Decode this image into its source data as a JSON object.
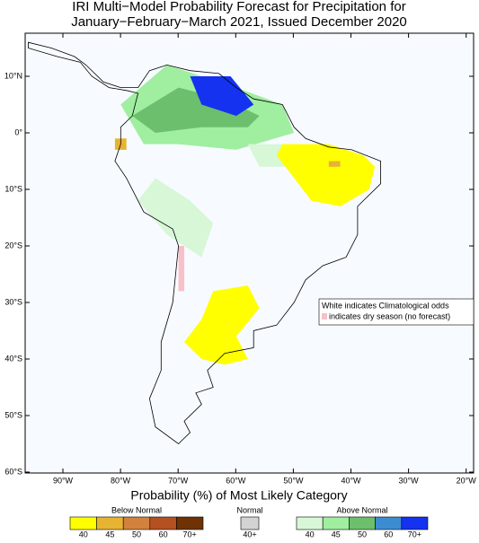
{
  "title": [
    "IRI Multi−Model Probability Forecast for Precipitation for",
    "January−February−March 2021, Issued December 2020"
  ],
  "map": {
    "lat_ticks": [
      "10°N",
      "0°",
      "10°S",
      "20°S",
      "30°S",
      "40°S",
      "50°S",
      "60°S"
    ],
    "lon_ticks": [
      "90°W",
      "80°W",
      "70°W",
      "60°W",
      "50°W",
      "40°W",
      "30°W",
      "20°W"
    ]
  },
  "note": {
    "line1": "White indicates Climatological odds",
    "line2": "indicates dry season (no forecast)"
  },
  "legend": {
    "title": "Probability (%) of Most Likely Category",
    "groups": [
      {
        "name": "Below Normal",
        "bins": [
          {
            "label": "40",
            "color": "#ffff00"
          },
          {
            "label": "45",
            "color": "#e6b432"
          },
          {
            "label": "50",
            "color": "#d2823c"
          },
          {
            "label": "60",
            "color": "#b45021"
          },
          {
            "label": "70+",
            "color": "#6e3205"
          }
        ]
      },
      {
        "name": "Normal",
        "bins": [
          {
            "label": "40+",
            "color": "#d3d3d3"
          }
        ]
      },
      {
        "name": "Above Normal",
        "bins": [
          {
            "label": "40",
            "color": "#d7f7d7"
          },
          {
            "label": "45",
            "color": "#a0eea0"
          },
          {
            "label": "50",
            "color": "#6cbf6c"
          },
          {
            "label": "60",
            "color": "#3c8cd2"
          },
          {
            "label": "70+",
            "color": "#1432f0"
          }
        ]
      }
    ]
  }
}
